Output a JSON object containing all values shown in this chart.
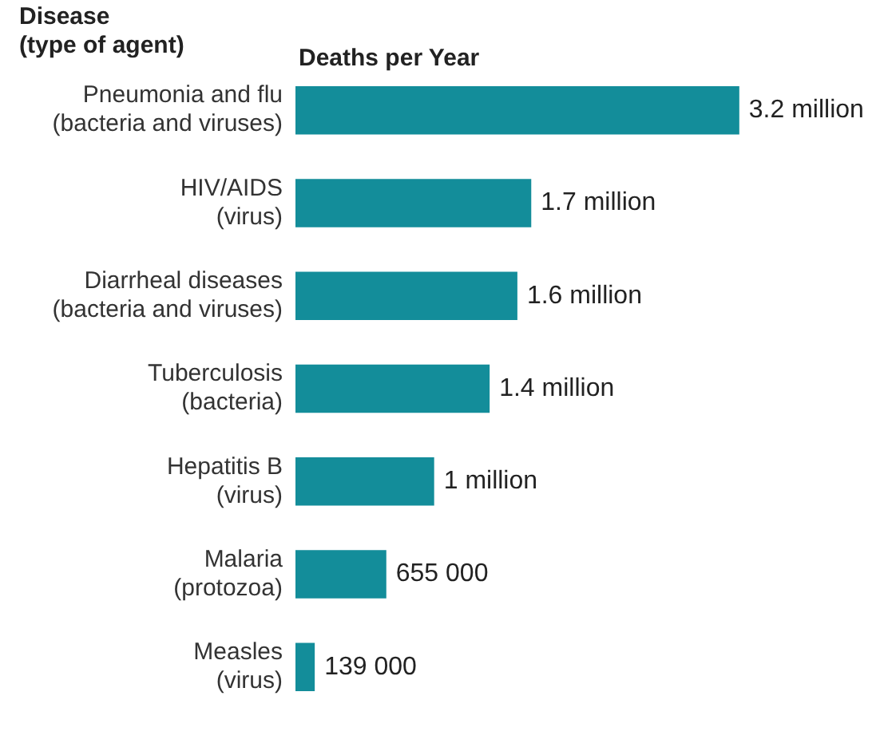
{
  "chart_data": {
    "type": "bar",
    "orientation": "horizontal",
    "xlabel": "Deaths per Year",
    "ylabel": "Disease\n(type of agent)",
    "categories": [
      "Pneumonia and flu\n(bacteria and viruses)",
      "HIV/AIDS\n(virus)",
      "Diarrheal diseases\n(bacteria and viruses)",
      "Tuberculosis\n(bacteria)",
      "Hepatitis B\n(virus)",
      "Malaria\n(protozoa)",
      "Measles\n(virus)"
    ],
    "values": [
      3200000,
      1700000,
      1600000,
      1400000,
      1000000,
      655000,
      139000
    ],
    "value_labels": [
      "3.2 million",
      "1.7 million",
      "1.6 million",
      "1.4 million",
      "1 million",
      "655 000",
      "139 000"
    ],
    "color": "#138d9a",
    "grid": false,
    "legend": false
  }
}
